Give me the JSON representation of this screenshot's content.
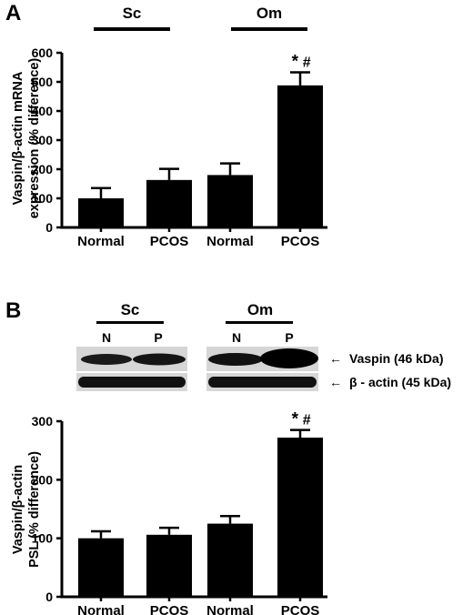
{
  "chart_data": [
    {
      "panel": "A",
      "type": "bar",
      "groups": [
        {
          "label": "Sc",
          "categories": [
            0,
            1
          ]
        },
        {
          "label": "Om",
          "categories": [
            2,
            3
          ]
        }
      ],
      "categories": [
        "Normal",
        "PCOS",
        "Normal",
        "PCOS"
      ],
      "values": [
        100,
        163,
        180,
        488
      ],
      "errors": [
        35,
        38,
        40,
        45
      ],
      "significance": [
        "",
        "",
        "",
        "*#"
      ],
      "ylabel_lines": [
        "Vaspin/β-actin mRNA",
        "expression (% difference)"
      ],
      "xlabel": "",
      "ylim": [
        0,
        600
      ],
      "yticks": [
        0,
        100,
        200,
        300,
        400,
        500,
        600
      ],
      "bar_color": "#000000",
      "grid": false
    },
    {
      "panel": "B",
      "type": "bar",
      "blot": {
        "groups": [
          {
            "label": "Sc",
            "lanes": [
              "N",
              "P"
            ]
          },
          {
            "label": "Om",
            "lanes": [
              "N",
              "P"
            ]
          }
        ],
        "bands": [
          "Vaspin (46 kDa)",
          "β - actin (45 kDa)"
        ],
        "arrow": "←"
      },
      "categories": [
        "Normal",
        "PCOS",
        "Normal",
        "PCOS"
      ],
      "values": [
        100,
        106,
        125,
        272
      ],
      "errors": [
        12,
        12,
        13,
        13
      ],
      "significance": [
        "",
        "",
        "",
        "*#"
      ],
      "ylabel_lines": [
        "Vaspin/β-actin",
        "PSL (% difference)"
      ],
      "xlabel": "",
      "ylim": [
        0,
        300
      ],
      "yticks": [
        0,
        100,
        200,
        300
      ],
      "bar_color": "#000000",
      "grid": false
    }
  ]
}
